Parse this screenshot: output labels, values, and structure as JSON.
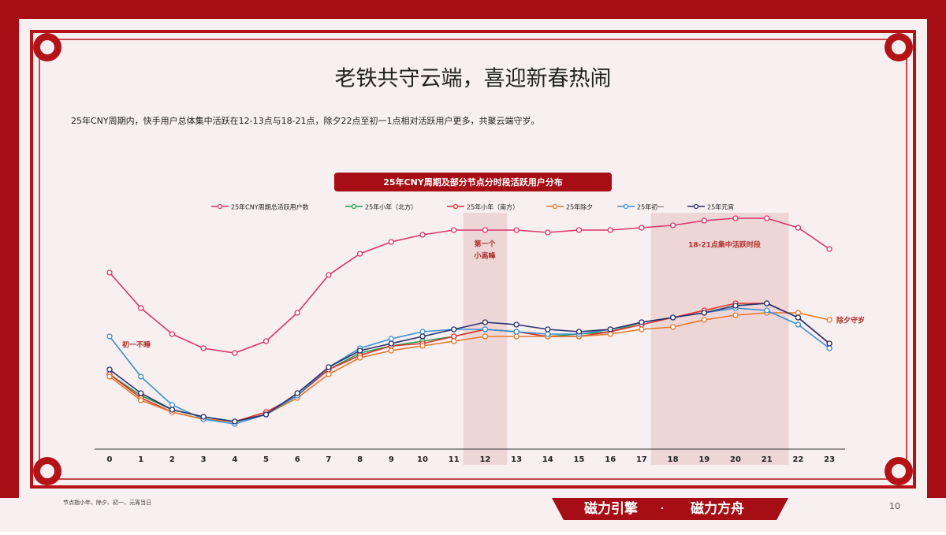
{
  "title": "老铁共守云端，喜迎新春热闹",
  "subtitle": "25年CNY周期内，快手用户总体集中活跃在12-13点与18-21点，除夕22点至初一1点相对活跃用户更多，共聚云端守岁。",
  "footnote": "节点指小年、除夕、初一、元宵当日",
  "brand": [
    "磁力引擎",
    "·",
    "磁力方舟"
  ],
  "page_number": "10",
  "chart_data": {
    "type": "line",
    "title": "25年CNY周期及部分节点分时段活跃用户分布",
    "categories": [
      "0",
      "1",
      "2",
      "3",
      "4",
      "5",
      "6",
      "7",
      "8",
      "9",
      "10",
      "11",
      "12",
      "13",
      "14",
      "15",
      "16",
      "17",
      "18",
      "19",
      "20",
      "21",
      "22",
      "23"
    ],
    "ylim": [
      0,
      100
    ],
    "series": [
      {
        "name": "25年CNY周期总活跃用户数",
        "color": "#d8356b",
        "values": [
          74,
          59,
          48,
          42,
          40,
          45,
          57,
          73,
          82,
          87,
          90,
          92,
          92,
          92,
          91,
          92,
          92,
          93,
          94,
          96,
          97,
          97,
          93,
          84
        ]
      },
      {
        "name": "25年小年（北方）",
        "color": "#22a04a",
        "values": [
          31,
          22,
          16,
          13,
          11,
          14,
          22,
          33,
          40,
          43,
          45,
          47,
          50,
          49,
          47,
          48,
          49,
          53,
          55,
          57,
          60,
          61,
          55,
          44
        ]
      },
      {
        "name": "25年小年（南方）",
        "color": "#e03030",
        "values": [
          31,
          21,
          15,
          12,
          11,
          15,
          22,
          33,
          39,
          43,
          44,
          47,
          50,
          49,
          47,
          47,
          49,
          52,
          55,
          58,
          61,
          61,
          55,
          44
        ]
      },
      {
        "name": "25年除夕",
        "color": "#e07a2a",
        "values": [
          30,
          20,
          15,
          12,
          11,
          14,
          21,
          31,
          38,
          41,
          43,
          45,
          47,
          47,
          47,
          47,
          48,
          50,
          51,
          54,
          56,
          57,
          57,
          54
        ]
      },
      {
        "name": "25年初一",
        "color": "#3a8fd0",
        "values": [
          47,
          30,
          18,
          12,
          10,
          14,
          22,
          34,
          42,
          46,
          49,
          50,
          50,
          49,
          48,
          48,
          50,
          53,
          55,
          57,
          59,
          58,
          52,
          42
        ]
      },
      {
        "name": "25年元宵",
        "color": "#2a2f6e",
        "values": [
          33,
          23,
          16,
          13,
          11,
          14,
          23,
          34,
          41,
          44,
          47,
          50,
          53,
          52,
          50,
          49,
          50,
          53,
          55,
          57,
          60,
          61,
          55,
          44
        ]
      }
    ],
    "bands": [
      {
        "start": 12,
        "end": 12
      },
      {
        "start": 18,
        "end": 21
      }
    ],
    "annotations": [
      {
        "lines": [
          "初一不睡"
        ],
        "color": "#b0302a"
      },
      {
        "lines": [
          "第一个",
          "小高峰"
        ],
        "color": "#b0302a"
      },
      {
        "lines": [
          "18-21点集中活跃时段"
        ],
        "color": "#b0302a"
      },
      {
        "lines": [
          "除夕守岁"
        ],
        "color": "#b0302a"
      }
    ]
  }
}
